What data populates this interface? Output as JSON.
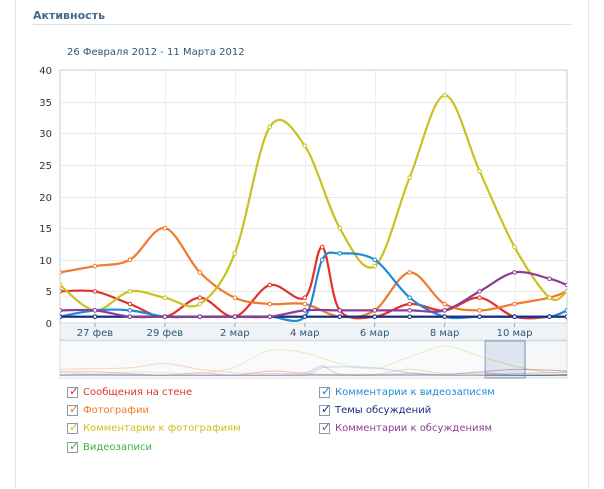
{
  "header": {
    "title": "Активность"
  },
  "chart_data": {
    "type": "line",
    "date_range": "26 Февраля 2012 - 11 Марта 2012",
    "ylim": [
      0,
      40
    ],
    "yticks": [
      "0",
      "5",
      "10",
      "15",
      "20",
      "25",
      "30",
      "35",
      "40"
    ],
    "xlim": [
      0,
      14.5
    ],
    "xtick_labels": [
      {
        "x": 1,
        "label": "27 фев"
      },
      {
        "x": 3,
        "label": "29 фев"
      },
      {
        "x": 5,
        "label": "2 мар"
      },
      {
        "x": 7,
        "label": "4 мар"
      },
      {
        "x": 9,
        "label": "6 мар"
      },
      {
        "x": 11,
        "label": "8 мар"
      },
      {
        "x": 13,
        "label": "10 мар"
      }
    ],
    "grid": true,
    "series": [
      {
        "name": "Сообщения на стене",
        "color": "#e2312b",
        "x": [
          0,
          1,
          2,
          3,
          4,
          5,
          6,
          7,
          7.5,
          8,
          9,
          10,
          11,
          12,
          13,
          14,
          14.5
        ],
        "y": [
          5,
          5,
          3,
          1,
          4,
          1,
          6,
          4,
          12,
          2,
          1,
          3,
          2,
          4,
          1,
          1,
          2
        ]
      },
      {
        "name": "Фотографии",
        "color": "#f0792c",
        "x": [
          0,
          1,
          2,
          3,
          4,
          5,
          6,
          7,
          8,
          9,
          10,
          11,
          12,
          13,
          14,
          14.5
        ],
        "y": [
          8,
          9,
          10,
          15,
          8,
          4,
          3,
          3,
          1,
          2,
          8,
          3,
          2,
          3,
          4,
          5
        ]
      },
      {
        "name": "Комментарии к фотографиям",
        "color": "#c9c21f",
        "x": [
          0,
          1,
          2,
          3,
          4,
          5,
          6,
          7,
          8,
          9,
          10,
          11,
          12,
          13,
          14,
          14.5
        ],
        "y": [
          6,
          2,
          5,
          4,
          3,
          11,
          31,
          28,
          15,
          9,
          23,
          36,
          24,
          12,
          4,
          5
        ]
      },
      {
        "name": "Видеозаписи",
        "color": "#3bb33b",
        "x": [
          0,
          1,
          2,
          3,
          4,
          5,
          6,
          7,
          8,
          9,
          10,
          11,
          12,
          13,
          14,
          14.5
        ],
        "y": [
          1,
          1,
          1,
          1,
          1,
          1,
          1,
          1,
          1,
          1,
          1,
          1,
          1,
          1,
          1,
          1
        ]
      },
      {
        "name": "Комментарии к видеозаписям",
        "color": "#1f8ad6",
        "x": [
          0,
          1,
          2,
          3,
          4,
          5,
          6,
          7,
          7.5,
          8,
          9,
          10,
          11,
          12,
          13,
          14,
          14.5
        ],
        "y": [
          1,
          2,
          2,
          1,
          1,
          1,
          1,
          1,
          10,
          11,
          10,
          4,
          1,
          1,
          1,
          1,
          2
        ]
      },
      {
        "name": "Темы обсуждений",
        "color": "#1d2a88",
        "x": [
          0,
          1,
          2,
          3,
          4,
          5,
          6,
          7,
          8,
          9,
          10,
          11,
          12,
          13,
          14,
          14.5
        ],
        "y": [
          1,
          1,
          1,
          1,
          1,
          1,
          1,
          1,
          1,
          1,
          1,
          1,
          1,
          1,
          1,
          1
        ]
      },
      {
        "name": "Комментарии к обсуждениям",
        "color": "#8e3c96",
        "x": [
          0,
          1,
          2,
          3,
          4,
          5,
          6,
          7,
          8,
          9,
          10,
          11,
          12,
          13,
          14,
          14.5
        ],
        "y": [
          2,
          2,
          1,
          1,
          1,
          1,
          1,
          2,
          2,
          2,
          2,
          2,
          5,
          8,
          7,
          6
        ]
      }
    ],
    "legend_placement": "bottom"
  }
}
